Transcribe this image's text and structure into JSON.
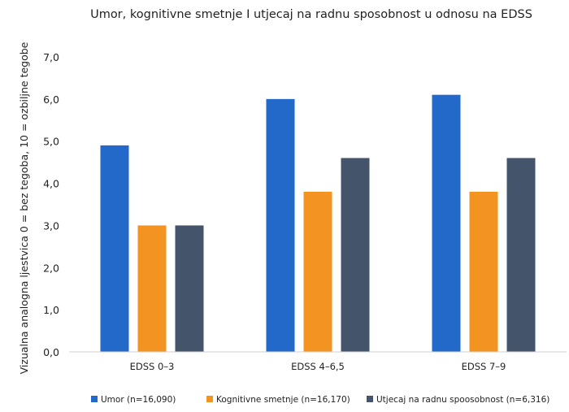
{
  "chart_data": {
    "type": "bar",
    "title": "Umor, kognitivne smetnje I utjecaj na radnu sposobnost u odnosu na EDSS",
    "xlabel": "",
    "ylabel": "Vizualna analogna ljestvica 0 = bez tegoba, 10 = ozbiljne tegobe",
    "ylim": [
      0,
      7
    ],
    "yticks": [
      "0,0",
      "1,0",
      "2,0",
      "3,0",
      "4,0",
      "5,0",
      "6,0",
      "7,0"
    ],
    "grid": false,
    "legend_position": "bottom",
    "categories": [
      "EDSS 0–3",
      "EDSS 4–6,5",
      "EDSS 7–9"
    ],
    "series": [
      {
        "name": "Umor (n=16,090)",
        "color": "#2369c9",
        "values": [
          4.9,
          6.0,
          6.1
        ]
      },
      {
        "name": "Kognitivne smetnje (n=16,170)",
        "color": "#f39422",
        "values": [
          3.0,
          3.8,
          3.8
        ]
      },
      {
        "name": "Utjecaj na radnu spoosobnost (n=6,316)",
        "color": "#44546a",
        "values": [
          3.0,
          4.6,
          4.6
        ]
      }
    ]
  }
}
